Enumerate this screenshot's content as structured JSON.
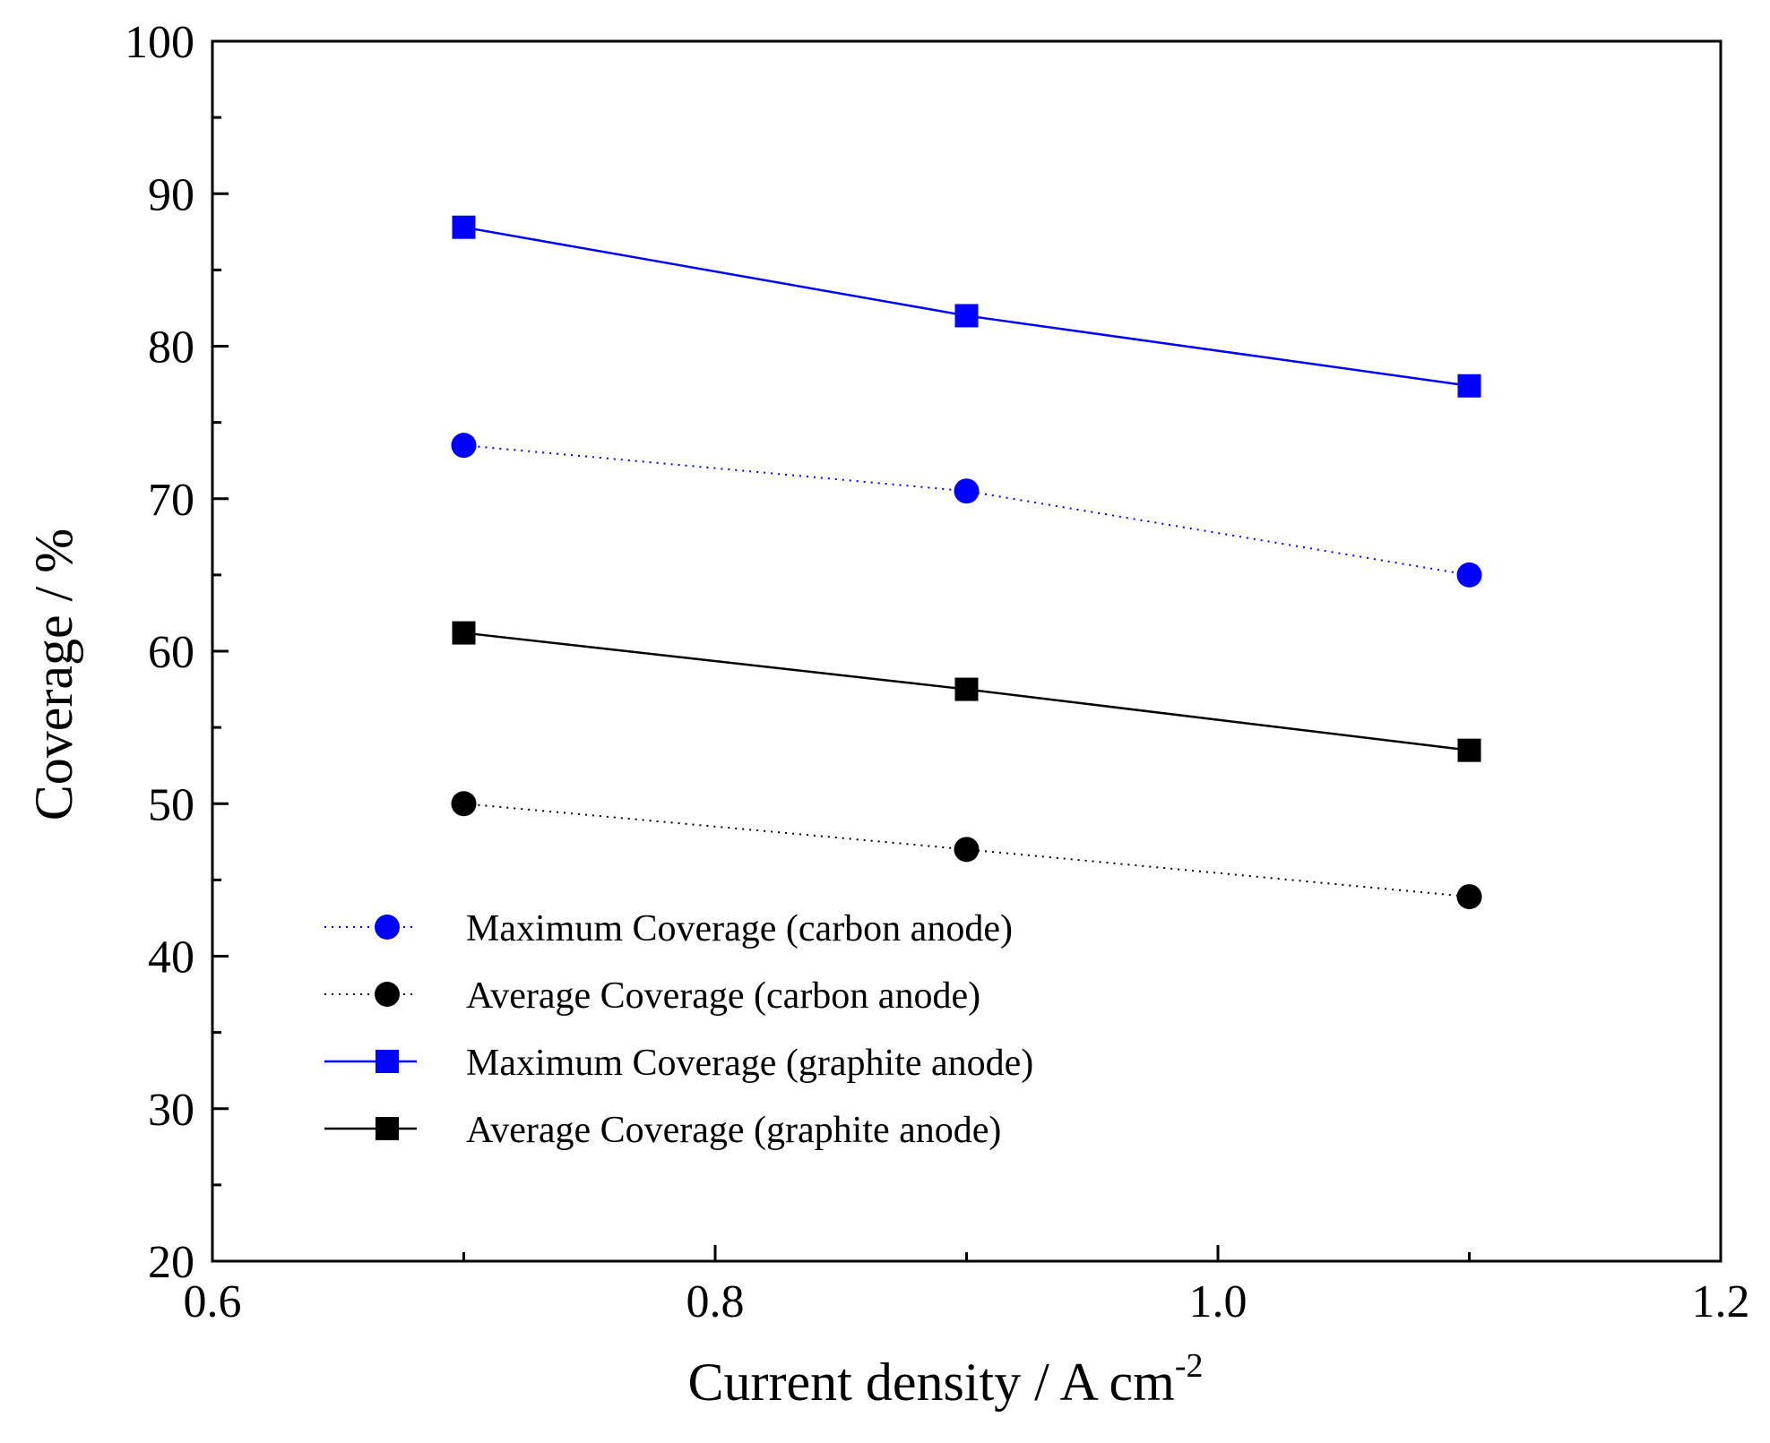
{
  "chart_data": {
    "type": "line",
    "title": "",
    "xlabel": "Current density / A cm",
    "xlabel_superscript": "-2",
    "ylabel": "Coverage / %",
    "xlim": [
      0.6,
      1.2
    ],
    "ylim": [
      20,
      100
    ],
    "x_ticks": [
      "0.6",
      "0.8",
      "1.0",
      "1.2"
    ],
    "y_ticks": [
      "20",
      "30",
      "40",
      "50",
      "60",
      "70",
      "80",
      "90",
      "100"
    ],
    "grid": false,
    "legend_position": "bottom-left",
    "x": [
      0.7,
      0.9,
      1.1
    ],
    "series": [
      {
        "name": "Maximum Coverage (carbon anode)",
        "values": [
          73.5,
          70.5,
          65.0
        ],
        "color": "#0000ff",
        "marker": "circle",
        "line": "dotted"
      },
      {
        "name": "Average Coverage (carbon anode)",
        "values": [
          50.0,
          47.0,
          43.9
        ],
        "color": "#000000",
        "marker": "circle",
        "line": "dotted"
      },
      {
        "name": "Maximum Coverage (graphite anode)",
        "values": [
          87.8,
          82.0,
          77.4
        ],
        "color": "#0000ff",
        "marker": "square",
        "line": "solid"
      },
      {
        "name": "Average Coverage (graphite anode)",
        "values": [
          61.2,
          57.5,
          53.5
        ],
        "color": "#000000",
        "marker": "square",
        "line": "solid"
      }
    ]
  }
}
